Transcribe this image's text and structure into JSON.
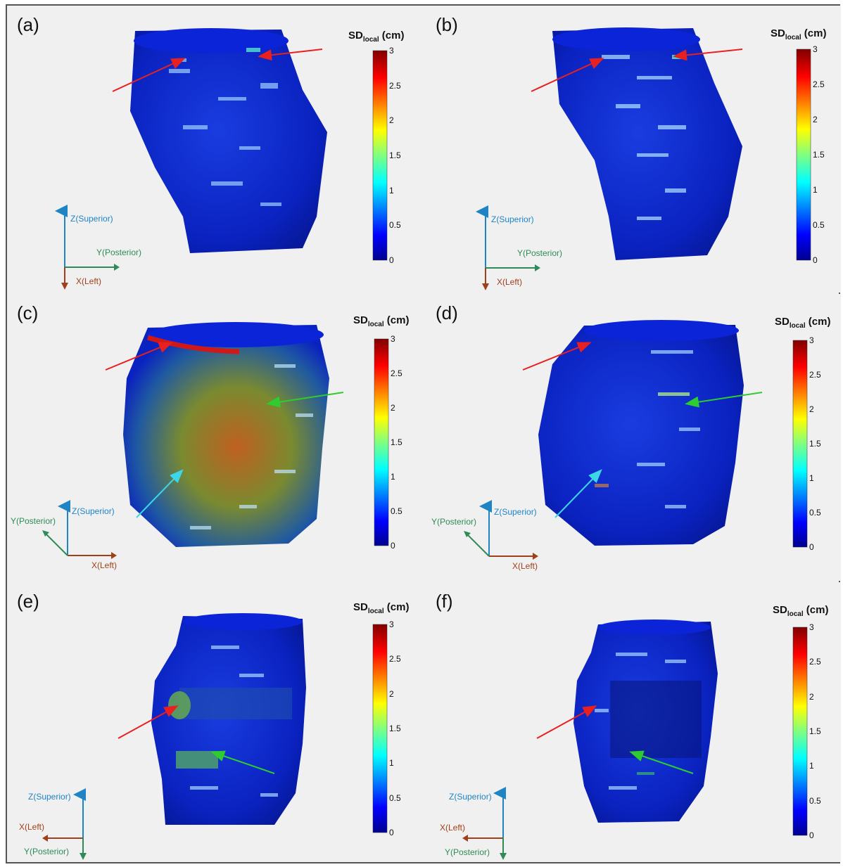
{
  "panels": [
    {
      "label": "(a)",
      "cb_title": "SD",
      "cb_sub": "local",
      "cb_unit": " (cm)",
      "axes": {
        "z": "Z(Superior)",
        "y": "Y(Posterior)",
        "x": "X(Left)"
      }
    },
    {
      "label": "(b)",
      "cb_title": "SD",
      "cb_sub": "local",
      "cb_unit": " (cm)",
      "axes": {
        "z": "Z(Superior)",
        "y": "Y(Posterior)",
        "x": "X(Left)"
      }
    },
    {
      "label": "(c)",
      "cb_title": "SD",
      "cb_sub": "local",
      "cb_unit": " (cm)",
      "axes": {
        "z": "Z(Superior)",
        "y": "Y(Posterior)",
        "x": "X(Left)"
      }
    },
    {
      "label": "(d)",
      "cb_title": "SD",
      "cb_sub": "local",
      "cb_unit": " (cm)",
      "axes": {
        "z": "Z(Superior)",
        "y": "Y(Posterior)",
        "x": "X(Left)"
      }
    },
    {
      "label": "(e)",
      "cb_title": "SD",
      "cb_sub": "local",
      "cb_unit": " (cm)",
      "axes": {
        "z": "Z(Superior)",
        "y": "Y(Posterior)",
        "x": "X(Left)"
      }
    },
    {
      "label": "(f)",
      "cb_title": "SD",
      "cb_sub": "local",
      "cb_unit": " (cm)",
      "axes": {
        "z": "Z(Superior)",
        "y": "Y(Posterior)",
        "x": "X(Left)"
      }
    }
  ],
  "colorbar_ticks": [
    "3",
    "2.5",
    "2",
    "1.5",
    "1",
    "0.5",
    "0"
  ],
  "colors": {
    "z_axis": "#1f84c4",
    "y_axis": "#2e8b57",
    "x_axis": "#a0401a",
    "arrow_red": "#e82020",
    "arrow_green": "#2ecc2e",
    "arrow_cyan": "#3cd6e6",
    "shape_base": "#0c26c8"
  },
  "icons": [
    "red-arrow-icon",
    "green-arrow-icon",
    "cyan-arrow-icon"
  ]
}
